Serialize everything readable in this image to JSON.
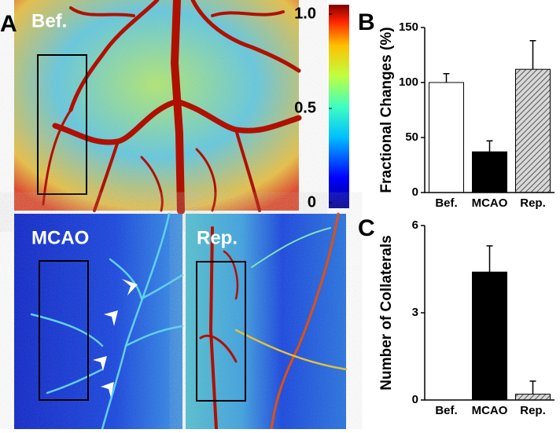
{
  "panels": [
    "A",
    "B",
    "C"
  ],
  "images": [
    "Bef.",
    "MCAO",
    "Rep."
  ],
  "colorbar": {
    "ticks": [
      0,
      0.5,
      {
        "value": 1,
        "label": "1.0"
      }
    ],
    "lim": [
      0,
      1
    ]
  },
  "chart_data": [
    {
      "type": "bar",
      "ylabel": "Fractional Changes (%)",
      "categories": [
        "Bef.",
        "MCAO",
        "Rep."
      ],
      "values": [
        100,
        37,
        112
      ],
      "errors": [
        8,
        10,
        26
      ],
      "colors": [
        "#ffffff",
        "#000000",
        "#bbbbbb"
      ],
      "hatched": [
        false,
        false,
        true
      ],
      "ylim": [
        0,
        150
      ],
      "yticks": [
        0,
        50,
        100,
        150
      ]
    },
    {
      "type": "bar",
      "ylabel": "Number of Collaterals",
      "categories": [
        "Bef.",
        "MCAO",
        "Rep."
      ],
      "values": [
        0,
        4.4,
        0.2
      ],
      "errors": [
        0,
        0.9,
        0.45
      ],
      "colors": [
        "#ffffff",
        "#000000",
        "#bbbbbb"
      ],
      "hatched": [
        false,
        false,
        true
      ],
      "ylim": [
        0,
        6
      ],
      "yticks": [
        0,
        3,
        6
      ]
    }
  ]
}
